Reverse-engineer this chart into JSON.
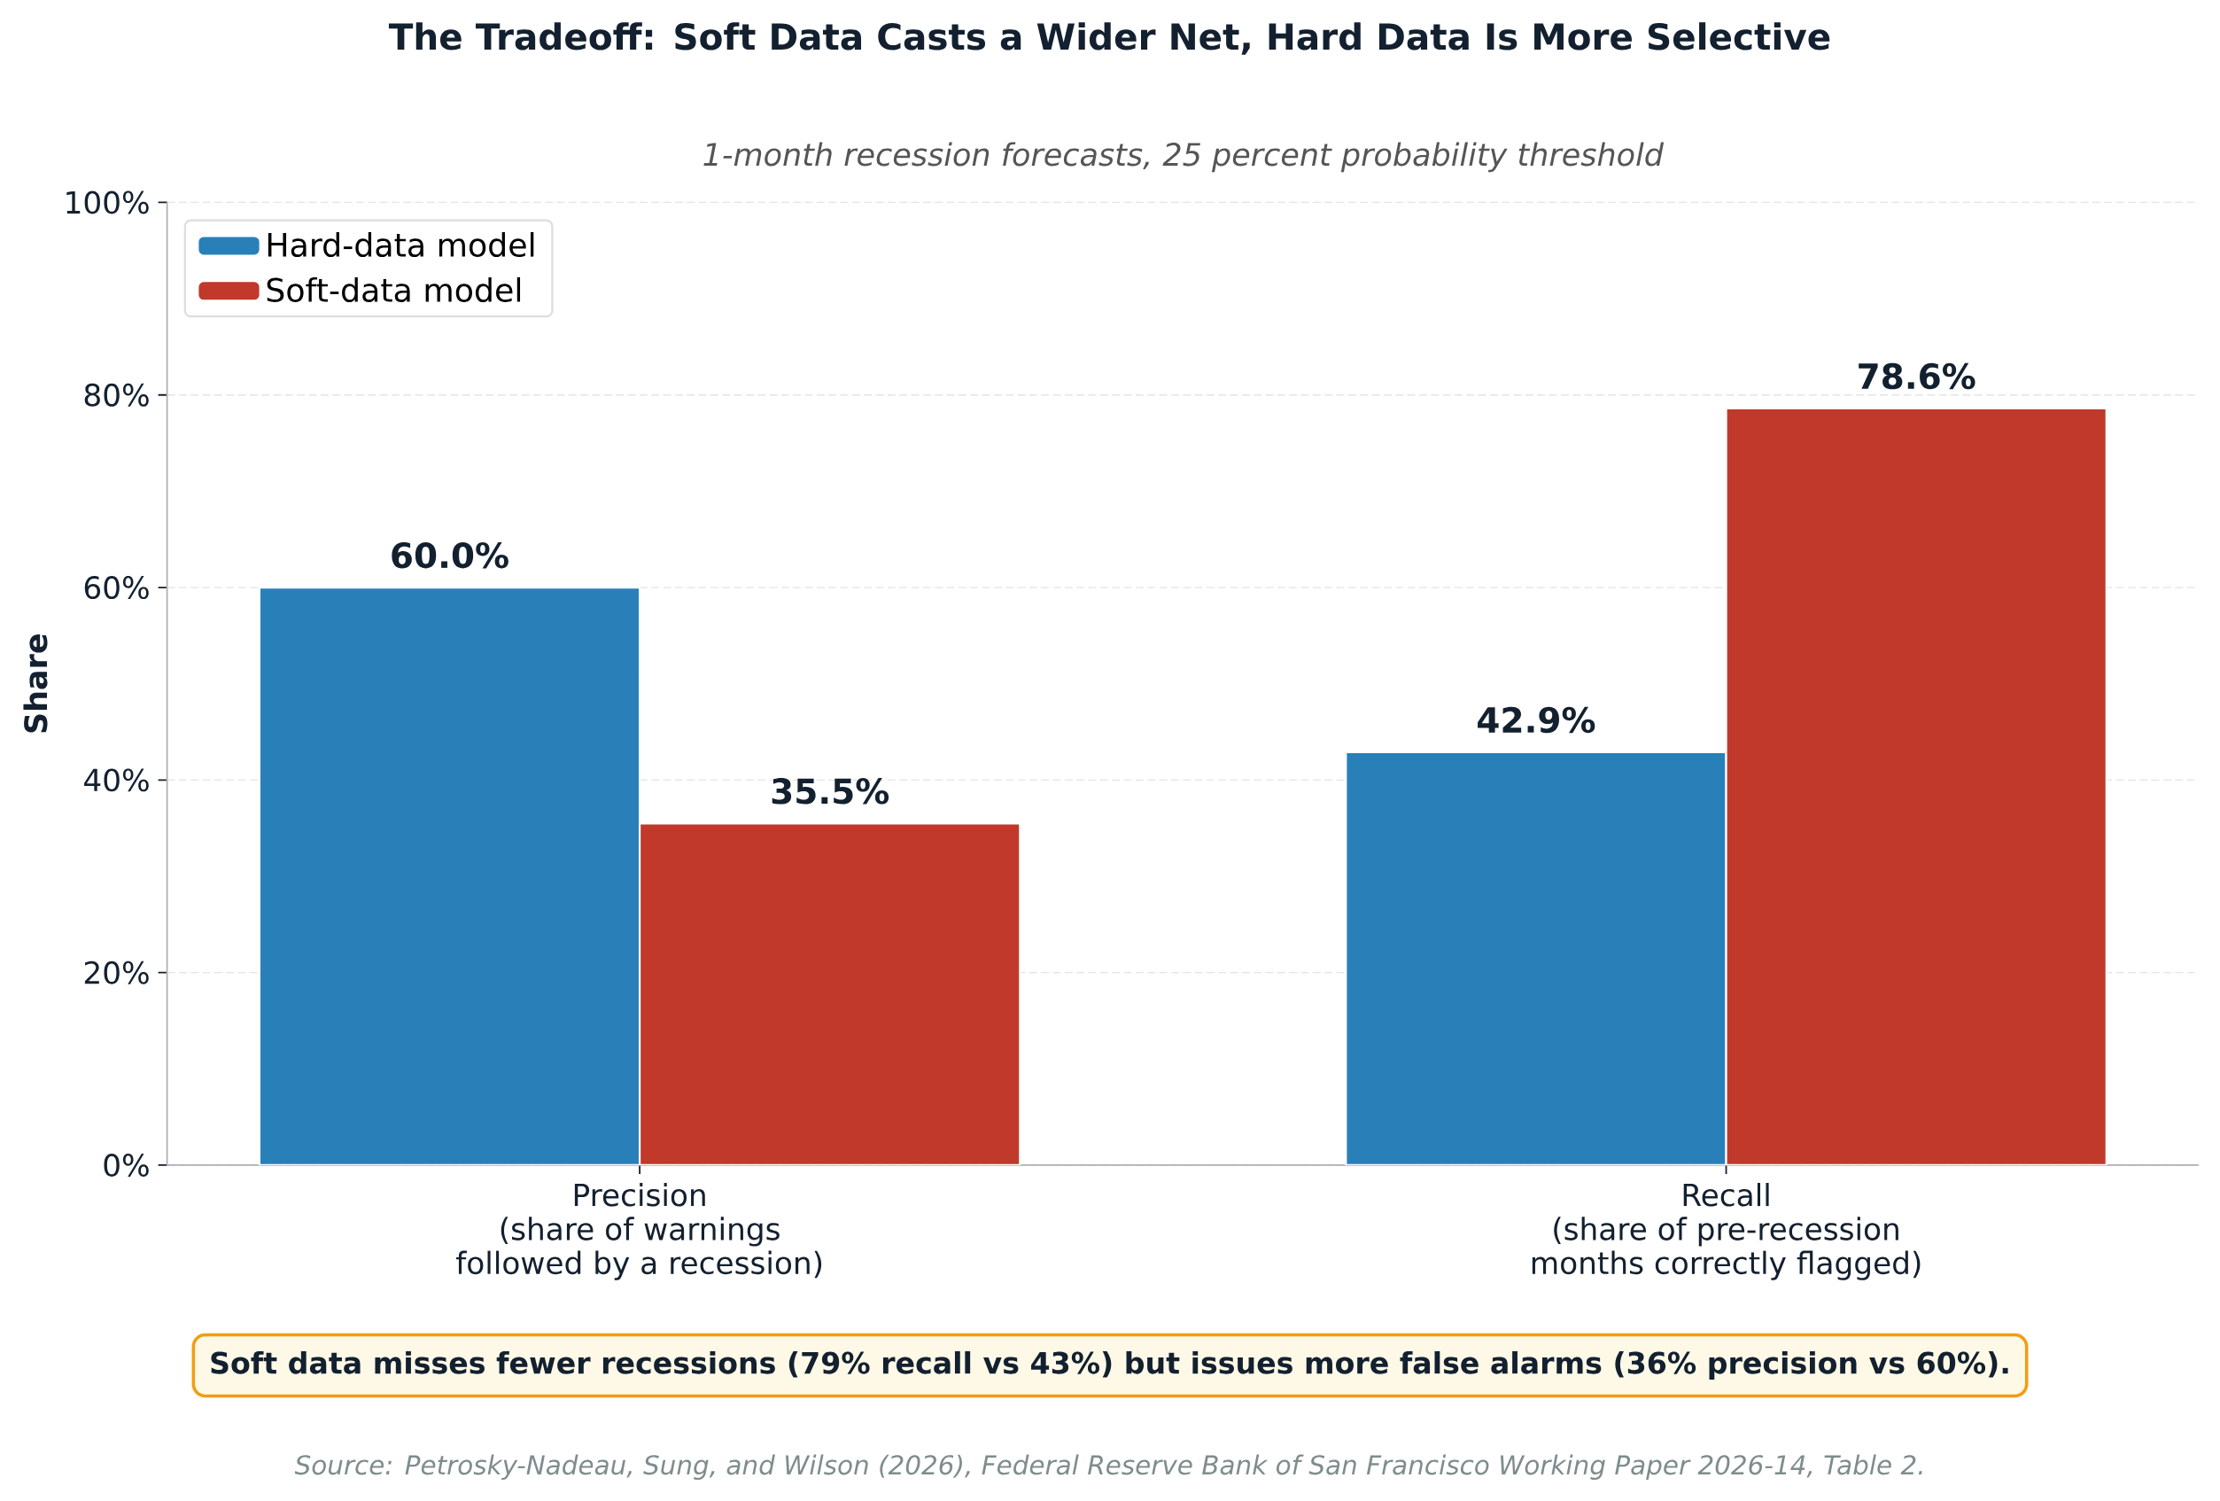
{
  "chart_data": {
    "type": "bar",
    "title": "The Tradeoff: Soft Data Casts a Wider Net, Hard Data Is More Selective",
    "subtitle": "1-month recession forecasts, 25 percent probability threshold",
    "ylabel": "Share",
    "categories": [
      "Precision\n(share of warnings\nfollowed by a recession)",
      "Recall\n(share of pre-recession\nmonths correctly flagged)"
    ],
    "series": [
      {
        "name": "Hard-data model",
        "color": "#2980b9",
        "values": [
          60.0,
          42.9
        ],
        "value_labels": [
          "60.0%",
          "42.9%"
        ]
      },
      {
        "name": "Soft-data model",
        "color": "#c0392b",
        "values": [
          35.5,
          78.6
        ],
        "value_labels": [
          "35.5%",
          "78.6%"
        ]
      }
    ],
    "ylim": [
      0,
      100
    ],
    "yticks": [
      {
        "value": 0,
        "label": "0%"
      },
      {
        "value": 20,
        "label": "20%"
      },
      {
        "value": 40,
        "label": "40%"
      },
      {
        "value": 60,
        "label": "60%"
      },
      {
        "value": 80,
        "label": "80%"
      },
      {
        "value": 100,
        "label": "100%"
      }
    ],
    "grid": "y",
    "legend": "top left",
    "annotations": [
      "Soft data misses fewer recessions (79% recall vs 43%) but issues more false alarms (36% precision vs 60%).",
      "Source: Petrosky-Nadeau, Sung, and Wilson (2026), Federal Reserve Bank of San Francisco Working Paper 2026-14, Table 2."
    ]
  }
}
